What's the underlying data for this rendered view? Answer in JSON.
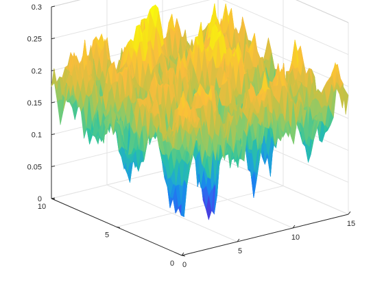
{
  "chart_data": {
    "type": "surface",
    "title": "",
    "xlabel": "",
    "ylabel": "",
    "zlabel": "",
    "xlim": [
      0,
      15
    ],
    "ylim": [
      0,
      10
    ],
    "zlim": [
      0,
      0.3
    ],
    "x_ticks": [
      "0",
      "5",
      "10",
      "15"
    ],
    "y_ticks": [
      "0",
      "5",
      "10"
    ],
    "z_ticks": [
      "0",
      "0.05",
      "0.1",
      "0.15",
      "0.2",
      "0.25",
      "0.3"
    ],
    "grid": true,
    "colormap": "parula",
    "colormap_stops": [
      "#3e26a8",
      "#4746eb",
      "#1a83f0",
      "#1fa8d4",
      "#2cc3a1",
      "#7ccc72",
      "#c8c144",
      "#f9bc3c",
      "#f7e019",
      "#f9fb0e"
    ],
    "surface_z_range_approx": [
      0.0,
      0.28
    ],
    "surface_mean_z_approx": 0.18,
    "notable_features": [
      {
        "x": 5.7,
        "y": 2.6,
        "z": 0.0,
        "kind": "deep trough"
      },
      {
        "x": 9.3,
        "y": 5.0,
        "z": 0.27,
        "kind": "tallest peak"
      },
      {
        "x": 12.5,
        "y": 8.0,
        "z": 0.25,
        "kind": "peak"
      }
    ]
  }
}
